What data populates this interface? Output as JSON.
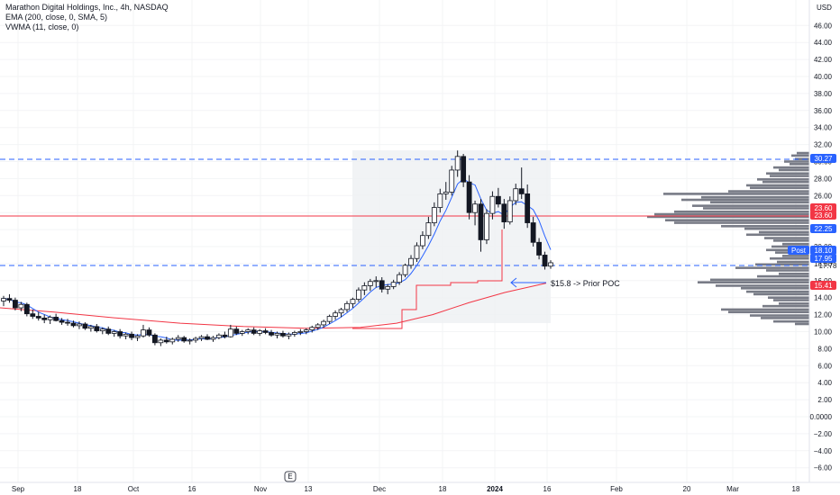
{
  "legend": {
    "title": "Marathon Digital Holdings, Inc., 4h, NASDAQ",
    "ema": "EMA (200, close, 0, SMA, 5)",
    "vwma": "VWMA (11, close, 0)"
  },
  "axis": {
    "currency": "USD",
    "y_ticks": [
      "46.00",
      "44.00",
      "42.00",
      "40.00",
      "38.00",
      "36.00",
      "34.00",
      "32.00",
      "30.00",
      "28.00",
      "26.00",
      "24.00",
      "22.00",
      "20.00",
      "18.00",
      "16.00",
      "14.00",
      "12.00",
      "10.00",
      "8.00",
      "6.00",
      "4.00",
      "2.00",
      "0.0000",
      "−2.00",
      "−4.00",
      "−6.00"
    ],
    "x_ticks": [
      "Sep",
      "18",
      "Oct",
      "16",
      "Nov",
      "13",
      "Dec",
      "18",
      "2024",
      "16",
      "Feb",
      "20",
      "Mar",
      "18"
    ],
    "earnings_marker": "E"
  },
  "price_tags": [
    {
      "label": "30.27",
      "color": "#2962ff"
    },
    {
      "label": "23.60",
      "color": "#f23645"
    },
    {
      "label": "23.60",
      "color": "#f23645"
    },
    {
      "label": "22.25",
      "color": "#2962ff"
    },
    {
      "label": "Post",
      "color": "#2962ff"
    },
    {
      "label": "18.10",
      "color": "#2962ff"
    },
    {
      "label": "17.95",
      "color": "#2962ff"
    },
    {
      "label": "17.78",
      "color": ""
    },
    {
      "label": "15.41",
      "color": "#f23645"
    }
  ],
  "annotation": "$15.8 -> Prior POC",
  "colors": {
    "ema": "#f23645",
    "vwma": "#2962ff",
    "hline_blue": "#2962ff",
    "hline_red": "#f23645",
    "volume_profile": "#787b86",
    "candle": "#131722"
  },
  "chart_data": {
    "type": "candlestick",
    "title": "Marathon Digital Holdings, Inc., 4h, NASDAQ",
    "ylabel": "USD",
    "ylim": [
      -7,
      48
    ],
    "horizontal_lines": [
      30.27,
      23.6,
      17.78
    ],
    "prior_poc": 15.8,
    "candles": [
      [
        13.6,
        14.2,
        13.0,
        13.9
      ],
      [
        13.9,
        14.4,
        13.4,
        13.7
      ],
      [
        13.7,
        14.0,
        12.5,
        12.8
      ],
      [
        12.8,
        13.5,
        12.4,
        13.2
      ],
      [
        13.2,
        13.4,
        11.8,
        12.1
      ],
      [
        12.1,
        12.6,
        11.5,
        11.8
      ],
      [
        11.8,
        12.3,
        11.3,
        11.6
      ],
      [
        11.6,
        12.0,
        11.0,
        11.4
      ],
      [
        11.4,
        11.9,
        10.9,
        11.7
      ],
      [
        11.7,
        12.1,
        11.2,
        11.3
      ],
      [
        11.3,
        11.6,
        10.8,
        11.1
      ],
      [
        11.1,
        11.5,
        10.7,
        11.0
      ],
      [
        11.0,
        11.3,
        10.5,
        10.7
      ],
      [
        10.7,
        11.2,
        10.3,
        10.9
      ],
      [
        10.9,
        11.1,
        10.2,
        10.4
      ],
      [
        10.4,
        10.8,
        10.0,
        10.6
      ],
      [
        10.6,
        10.9,
        9.9,
        10.1
      ],
      [
        10.1,
        10.5,
        9.7,
        10.3
      ],
      [
        10.3,
        10.6,
        9.6,
        9.8
      ],
      [
        9.8,
        10.2,
        9.4,
        10.0
      ],
      [
        10.0,
        10.3,
        9.2,
        9.5
      ],
      [
        9.5,
        9.9,
        9.1,
        9.7
      ],
      [
        9.7,
        10.0,
        9.0,
        9.3
      ],
      [
        9.3,
        9.7,
        8.9,
        9.5
      ],
      [
        9.5,
        10.8,
        9.3,
        10.2
      ],
      [
        10.2,
        10.5,
        9.4,
        9.6
      ],
      [
        9.6,
        9.8,
        8.4,
        8.7
      ],
      [
        8.7,
        9.2,
        8.3,
        9.0
      ],
      [
        9.0,
        9.4,
        8.6,
        8.8
      ],
      [
        8.8,
        9.3,
        8.5,
        9.1
      ],
      [
        9.1,
        9.6,
        8.8,
        9.3
      ],
      [
        9.3,
        9.5,
        8.7,
        8.9
      ],
      [
        8.9,
        9.2,
        8.5,
        9.0
      ],
      [
        9.0,
        9.4,
        8.7,
        9.2
      ],
      [
        9.2,
        9.6,
        8.9,
        9.4
      ],
      [
        9.4,
        9.7,
        9.0,
        9.1
      ],
      [
        9.1,
        9.5,
        8.8,
        9.3
      ],
      [
        9.3,
        9.8,
        9.1,
        9.6
      ],
      [
        9.6,
        10.0,
        9.2,
        9.4
      ],
      [
        9.4,
        10.8,
        9.3,
        10.3
      ],
      [
        10.3,
        10.6,
        9.6,
        9.8
      ],
      [
        9.8,
        10.2,
        9.5,
        10.0
      ],
      [
        10.0,
        10.4,
        9.7,
        10.2
      ],
      [
        10.2,
        10.5,
        9.6,
        9.8
      ],
      [
        9.8,
        10.3,
        9.5,
        10.1
      ],
      [
        10.1,
        10.4,
        9.7,
        9.9
      ],
      [
        9.9,
        10.2,
        9.4,
        9.6
      ],
      [
        9.6,
        10.0,
        9.2,
        9.8
      ],
      [
        9.8,
        10.1,
        9.3,
        9.5
      ],
      [
        9.5,
        9.9,
        9.1,
        9.7
      ],
      [
        9.7,
        10.1,
        9.4,
        9.9
      ],
      [
        9.9,
        10.3,
        9.6,
        10.0
      ],
      [
        10.0,
        10.4,
        9.7,
        10.2
      ],
      [
        10.2,
        10.7,
        9.9,
        10.5
      ],
      [
        10.5,
        11.0,
        10.2,
        10.8
      ],
      [
        10.8,
        11.4,
        10.5,
        11.2
      ],
      [
        11.2,
        12.0,
        10.9,
        11.8
      ],
      [
        11.8,
        12.5,
        11.4,
        12.2
      ],
      [
        12.2,
        12.8,
        11.7,
        12.6
      ],
      [
        12.6,
        13.6,
        12.3,
        13.3
      ],
      [
        13.3,
        14.0,
        12.8,
        13.8
      ],
      [
        13.8,
        15.2,
        13.5,
        14.9
      ],
      [
        14.9,
        15.8,
        14.3,
        15.4
      ],
      [
        15.4,
        16.2,
        14.8,
        15.9
      ],
      [
        15.9,
        16.5,
        15.2,
        16.0
      ],
      [
        16.0,
        16.4,
        14.6,
        15.0
      ],
      [
        15.0,
        15.6,
        14.4,
        15.3
      ],
      [
        15.3,
        16.1,
        15.0,
        15.8
      ],
      [
        15.8,
        17.0,
        15.5,
        16.7
      ],
      [
        16.7,
        18.0,
        16.4,
        17.8
      ],
      [
        17.8,
        19.0,
        17.4,
        18.6
      ],
      [
        18.6,
        20.5,
        18.2,
        20.1
      ],
      [
        20.1,
        21.8,
        19.7,
        21.3
      ],
      [
        21.3,
        23.5,
        20.9,
        22.8
      ],
      [
        22.8,
        25.2,
        22.4,
        24.6
      ],
      [
        24.6,
        26.8,
        24.0,
        26.2
      ],
      [
        26.2,
        27.6,
        25.5,
        26.4
      ],
      [
        26.4,
        29.5,
        26.0,
        29.0
      ],
      [
        29.0,
        31.3,
        28.2,
        30.6
      ],
      [
        30.6,
        30.9,
        27.0,
        27.6
      ],
      [
        27.6,
        28.4,
        23.2,
        24.0
      ],
      [
        24.0,
        25.4,
        22.5,
        25.0
      ],
      [
        25.0,
        25.6,
        19.4,
        20.8
      ],
      [
        20.8,
        24.4,
        20.3,
        23.9
      ],
      [
        23.9,
        26.5,
        23.2,
        25.9
      ],
      [
        25.9,
        26.9,
        24.6,
        25.0
      ],
      [
        25.0,
        25.6,
        22.1,
        22.9
      ],
      [
        22.9,
        25.9,
        22.6,
        25.4
      ],
      [
        25.4,
        27.4,
        24.9,
        26.8
      ],
      [
        26.8,
        29.3,
        25.6,
        26.2
      ],
      [
        26.2,
        27.3,
        22.2,
        22.8
      ],
      [
        22.8,
        23.5,
        20.0,
        20.5
      ],
      [
        20.5,
        21.0,
        18.5,
        19.0
      ],
      [
        19.0,
        19.4,
        17.3,
        17.7
      ],
      [
        17.7,
        18.4,
        17.4,
        18.1
      ]
    ]
  }
}
